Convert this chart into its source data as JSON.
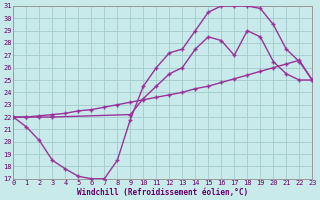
{
  "bg_color": "#c8eaea",
  "grid_color": "#a8d0d0",
  "line_color": "#993399",
  "xlabel": "Windchill (Refroidissement éolien,°C)",
  "xlim": [
    0,
    23
  ],
  "ylim": [
    17,
    31
  ],
  "xticks": [
    0,
    1,
    2,
    3,
    4,
    5,
    6,
    7,
    8,
    9,
    10,
    11,
    12,
    13,
    14,
    15,
    16,
    17,
    18,
    19,
    20,
    21,
    22,
    23
  ],
  "yticks": [
    17,
    18,
    19,
    20,
    21,
    22,
    23,
    24,
    25,
    26,
    27,
    28,
    29,
    30,
    31
  ],
  "line1_x": [
    0,
    1,
    2,
    3,
    4,
    5,
    6,
    7,
    8,
    9,
    10,
    11,
    12,
    13,
    14,
    15,
    16,
    17,
    18,
    19,
    20,
    21,
    22,
    23
  ],
  "line1_y": [
    22.0,
    22.0,
    22.1,
    22.2,
    22.3,
    22.5,
    22.6,
    22.8,
    23.0,
    23.2,
    23.4,
    23.6,
    23.8,
    24.0,
    24.3,
    24.5,
    24.8,
    25.1,
    25.4,
    25.7,
    26.0,
    26.3,
    26.6,
    25.0
  ],
  "line2_x": [
    0,
    1,
    2,
    3,
    4,
    5,
    6,
    7,
    8,
    9,
    10,
    11,
    12,
    13,
    14,
    15,
    16,
    17,
    18,
    19,
    20,
    21,
    22,
    23
  ],
  "line2_y": [
    22.0,
    21.2,
    20.1,
    18.5,
    17.8,
    17.2,
    17.0,
    17.0,
    18.5,
    21.8,
    24.5,
    26.0,
    27.2,
    27.5,
    29.0,
    30.5,
    31.0,
    31.0,
    31.0,
    30.8,
    29.5,
    27.5,
    26.5,
    25.0
  ],
  "line3_x": [
    0,
    1,
    2,
    3,
    9,
    10,
    11,
    12,
    13,
    14,
    15,
    16,
    17,
    18,
    19,
    20,
    21,
    22,
    23
  ],
  "line3_y": [
    22.0,
    22.0,
    22.0,
    22.0,
    22.2,
    23.5,
    24.5,
    25.5,
    26.0,
    27.5,
    28.5,
    28.2,
    27.0,
    29.0,
    28.5,
    26.5,
    25.5,
    25.0,
    25.0
  ]
}
